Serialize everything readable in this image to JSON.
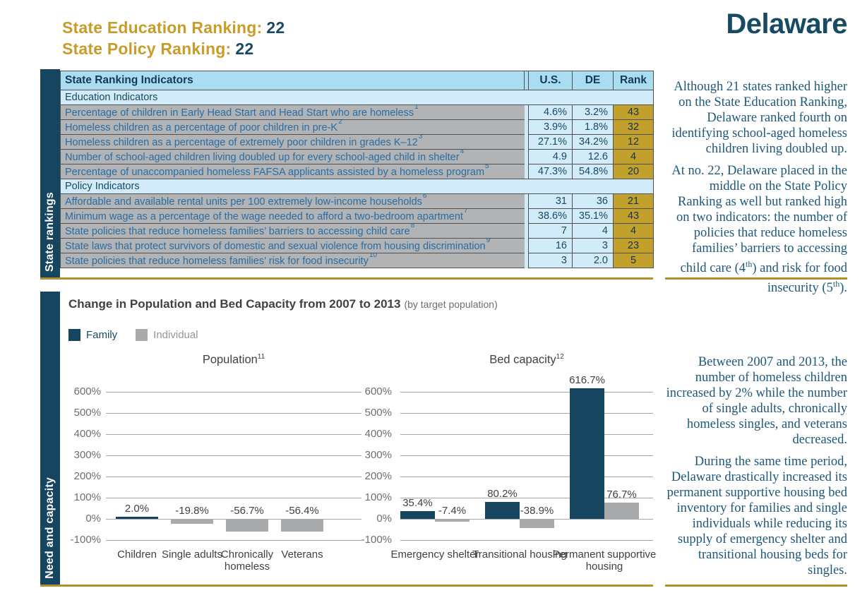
{
  "page": {
    "state_name": "Delaware",
    "education_ranking_label": "State Education Ranking:",
    "education_ranking_value": "22",
    "policy_ranking_label": "State Policy Ranking:",
    "policy_ranking_value": "22"
  },
  "colors": {
    "navy": "#16455f",
    "gold_text": "#c79c27",
    "gold_rule": "#b3902a",
    "rank_cell_gold": "#c2a02c",
    "header_blue": "#aadcf2",
    "light_blue": "#d2ebf8",
    "cell_gray": "#b1b3b5",
    "bar_gray": "#a8aaac"
  },
  "rankings_table": {
    "section_label": "State rankings",
    "columns": [
      "State Ranking Indicators",
      "U.S.",
      "DE",
      "Rank"
    ],
    "groups": [
      {
        "group_label": "Education Indicators",
        "rows": [
          {
            "indicator": "Percentage of children in Early Head Start and Head Start who are homeless",
            "footnote": "1",
            "us": "4.6%",
            "de": "3.2%",
            "rank": "43"
          },
          {
            "indicator": "Homeless children as a percentage of poor children in pre-K",
            "footnote": "2",
            "us": "3.9%",
            "de": "1.8%",
            "rank": "32"
          },
          {
            "indicator": "Homeless children as a percentage of extremely poor children in grades K–12",
            "footnote": "3",
            "us": "27.1%",
            "de": "34.2%",
            "rank": "12"
          },
          {
            "indicator": "Number of school-aged children living doubled up for every school-aged child in shelter",
            "footnote": "4",
            "us": "4.9",
            "de": "12.6",
            "rank": "4"
          },
          {
            "indicator": "Percentage of unaccompanied homeless FAFSA applicants assisted by a homeless program",
            "footnote": "5",
            "us": "47.3%",
            "de": "54.8%",
            "rank": "20"
          }
        ]
      },
      {
        "group_label": "Policy Indicators",
        "rows": [
          {
            "indicator": "Affordable and available rental units per 100 extremely low-income households",
            "footnote": "6",
            "us": "31",
            "de": "36",
            "rank": "21"
          },
          {
            "indicator": "Minimum wage as a percentage of the wage needed to afford a two-bedroom apartment",
            "footnote": "7",
            "us": "38.6%",
            "de": "35.1%",
            "rank": "43"
          },
          {
            "indicator": "State policies that reduce homeless families’ barriers to accessing child care",
            "footnote": "8",
            "us": "7",
            "de": "4",
            "rank": "4"
          },
          {
            "indicator": "State laws that protect survivors of domestic and sexual violence from housing discrimination",
            "footnote": "9",
            "us": "16",
            "de": "3",
            "rank": "23"
          },
          {
            "indicator": "State policies that reduce homeless families’ risk for food insecurity",
            "footnote": "10",
            "us": "3",
            "de": "2.0",
            "rank": "5"
          }
        ]
      }
    ]
  },
  "sidebar_right": {
    "paragraph_1": "Although 21 states ranked higher on the State Education Ranking, Delaware ranked fourth on identifying school-aged homeless children living doubled up.",
    "paragraph_2": "At no. 22, Delaware placed in the middle on the State Policy Ranking as well but ranked high on two indicators: the number of policies that reduce homeless families’ barriers to accessing child care (4<sup>th</sup>) and risk for food insecurity (5<sup>th</sup>).",
    "paragraph_3": "Between 2007 and 2013, the number of homeless children increased by 2% while the number of single adults, chronically homeless singles, and veterans decreased.",
    "paragraph_4": "During the same time period, Delaware drastically increased its permanent supportive housing bed inventory for families and single individuals while reducing its supply of emergency shelter and transitional housing beds for singles."
  },
  "need_capacity": {
    "section_label": "Need and capacity",
    "title": "Change in Population and Bed Capacity from 2007 to 2013",
    "title_suffix": "(by target population)",
    "legend": [
      {
        "label": "Family",
        "color": "#16455f",
        "label_color": "#174a63"
      },
      {
        "label": "Individual",
        "color": "#a8aaac",
        "label_color": "#939598"
      }
    ]
  },
  "chart_data": [
    {
      "type": "bar",
      "title": "Population",
      "title_footnote": "11",
      "ylim": [
        -100,
        600
      ],
      "ytick_step": 100,
      "ytick_format": "percent",
      "grid": true,
      "categories": [
        {
          "label": "Children",
          "bars": [
            {
              "series": "Family",
              "value": 2.0,
              "label": "2.0%"
            }
          ]
        },
        {
          "label": "Single adults",
          "bars": [
            {
              "series": "Individual",
              "value": -19.8,
              "label": "-19.8%"
            }
          ]
        },
        {
          "label": "Chronically homeless",
          "bars": [
            {
              "series": "Individual",
              "value": -56.7,
              "label": "-56.7%"
            }
          ]
        },
        {
          "label": "Veterans",
          "bars": [
            {
              "series": "Individual",
              "value": -56.4,
              "label": "-56.4%"
            }
          ]
        }
      ]
    },
    {
      "type": "bar",
      "title": "Bed capacity",
      "title_footnote": "12",
      "ylim": [
        -100,
        600
      ],
      "ytick_step": 100,
      "ytick_format": "percent",
      "grid": true,
      "categories": [
        {
          "label": "Emergency shelter",
          "bars": [
            {
              "series": "Family",
              "value": 35.4,
              "label": "35.4%"
            },
            {
              "series": "Individual",
              "value": -7.4,
              "label": "-7.4%"
            }
          ]
        },
        {
          "label": "Transitional housing",
          "bars": [
            {
              "series": "Family",
              "value": 80.2,
              "label": "80.2%"
            },
            {
              "series": "Individual",
              "value": -38.9,
              "label": "-38.9%"
            }
          ]
        },
        {
          "label": "Permanent supportive housing",
          "bars": [
            {
              "series": "Family",
              "value": 616.7,
              "label": "616.7%"
            },
            {
              "series": "Individual",
              "value": 76.7,
              "label": "76.7%"
            }
          ]
        }
      ]
    }
  ]
}
